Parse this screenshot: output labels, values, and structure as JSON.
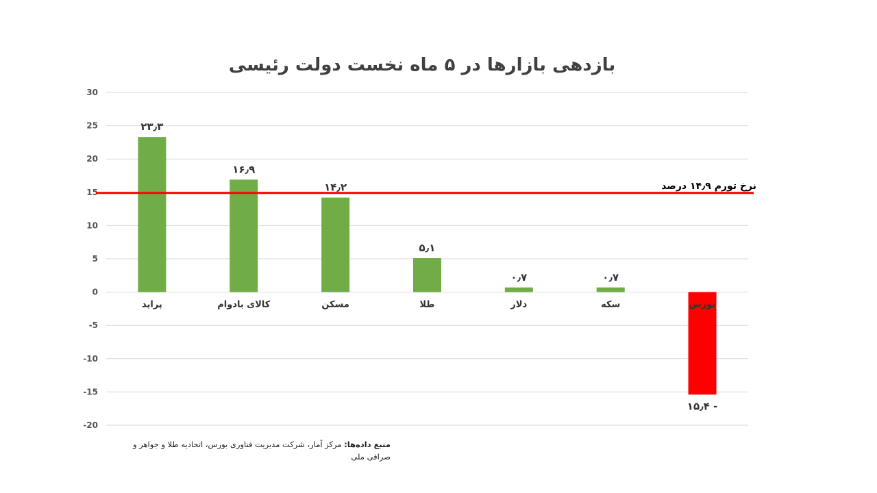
{
  "chart_data": {
    "type": "bar",
    "title": "بازدهی بازارها در ۵ ماه نخست دولت رئیسی",
    "categories": [
      "پراید",
      "کالای بادوام",
      "مسکن",
      "طلا",
      "دلار",
      "سکه",
      "بورس"
    ],
    "values": [
      23.3,
      16.9,
      14.2,
      5.1,
      0.7,
      0.7,
      -15.4
    ],
    "data_labels": [
      "۲۳٫۳",
      "۱۶٫۹",
      "۱۴٫۲",
      "۵٫۱",
      "۰٫۷",
      "۰٫۷",
      "- ۱۵٫۴"
    ],
    "ylim": [
      -20,
      30
    ],
    "yticks": [
      30,
      25,
      20,
      15,
      10,
      5,
      0,
      -5,
      -10,
      -15,
      -20
    ],
    "ytick_labels": [
      "30",
      "25",
      "20",
      "15",
      "10",
      "5",
      "0",
      "-5",
      "-10",
      "-15",
      "-20"
    ],
    "grid": true,
    "positive_color": "#70ad47",
    "negative_color": "#ff0000",
    "reference_line": {
      "value": 14.9,
      "label": "نرخ تورم ۱۴٫۹ درصد",
      "color": "#ff0000"
    }
  },
  "source": {
    "label": "منبع داده‌ها:",
    "text": " مرکز آمار، شرکت مدیریت فناوری بورس، اتحادیه طلا و جواهر و صرافی ملی"
  }
}
